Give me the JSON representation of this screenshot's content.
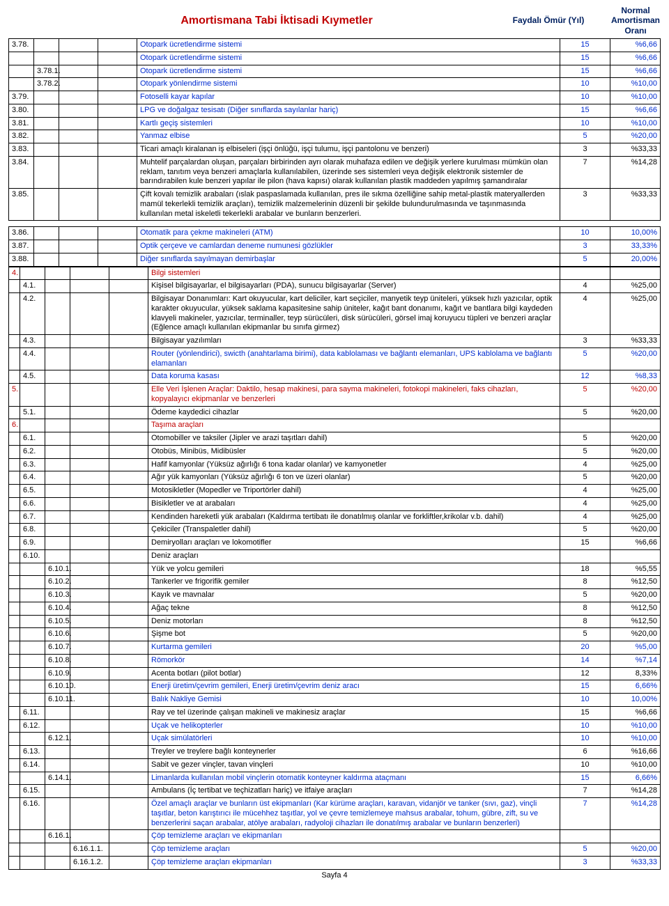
{
  "header": {
    "title": "Amortismana Tabi İktisadi Kıymetler",
    "col1": "Faydalı Ömür (Yıl)",
    "col2": "Normal Amortisman Oranı"
  },
  "footer": "Sayfa 4",
  "rows": [
    {
      "c1": "3.78.",
      "c2": "",
      "c3": "",
      "c4": "",
      "desc": "Otopark ücretlendirme sistemi",
      "col": "blue",
      "v1": "15",
      "v2": "%6,66"
    },
    {
      "c1": "",
      "c2": "",
      "c3": "",
      "c4": "",
      "desc": "Otopark ücretlendirme sistemi",
      "col": "blue",
      "v1": "15",
      "v2": "%6,66"
    },
    {
      "c1": "",
      "c2": "3.78.1.",
      "c3": "",
      "c4": "",
      "desc": "Otopark ücretlendirme sistemi",
      "col": "blue",
      "v1": "15",
      "v2": "%6,66"
    },
    {
      "c1": "",
      "c2": "3.78.2.",
      "c3": "",
      "c4": "",
      "desc": "Otopark yönlendirme sistemi",
      "col": "blue",
      "v1": "10",
      "v2": "%10,00"
    },
    {
      "c1": "3.79.",
      "c2": "",
      "c3": "",
      "c4": "",
      "desc": "Fotoselli kayar kapılar",
      "col": "blue",
      "v1": "10",
      "v2": "%10,00"
    },
    {
      "c1": "3.80.",
      "c2": "",
      "c3": "",
      "c4": "",
      "desc": "LPG ve doğalgaz tesisatı (Diğer sınıflarda sayılanlar hariç)",
      "col": "blue",
      "v1": "15",
      "v2": "%6,66"
    },
    {
      "c1": "3.81.",
      "c2": "",
      "c3": "",
      "c4": "",
      "desc": "Kartlı geçiş sistemleri",
      "col": "blue",
      "v1": "10",
      "v2": "%10,00"
    },
    {
      "c1": "3.82.",
      "c2": "",
      "c3": "",
      "c4": "",
      "desc": "Yanmaz elbise",
      "col": "blue",
      "v1": "5",
      "v2": "%20,00"
    },
    {
      "c1": "3.83.",
      "c2": "",
      "c3": "",
      "c4": "",
      "desc": "Ticari amaçlı kiralanan iş elbiseleri (işçi önlüğü, işçi tulumu, işçi pantolonu ve benzeri)",
      "col": "",
      "v1": "3",
      "v2": "%33,33"
    },
    {
      "c1": "3.84.",
      "c2": "",
      "c3": "",
      "c4": "",
      "desc": "Muhtelif parçalardan oluşan, parçaları birbirinden ayrı olarak muhafaza edilen ve değişik yerlere kurulması mümkün olan reklam, tanıtım veya benzeri amaçlarla kullanılabilen, üzerinde ses sistemleri veya değişik elektronik sistemler de barındırabilen kule benzeri yapılar ile pilon (hava kapısı) olarak kullanılan plastik maddeden yapılmış şamandıralar",
      "col": "",
      "v1": "7",
      "v2": "%14,28"
    },
    {
      "c1": "3.85.",
      "c2": "",
      "c3": "",
      "c4": "",
      "desc": "Çift kovalı temizlik arabaları (ıslak paspaslamada kullanılan, pres ile sıkma özelliğine sahip metal-plastik materyallerden mamül tekerlekli temizlik araçları),  temizlik malzemelerinin düzenli bir şekilde bulundurulmasında ve taşınmasında kullanılan metal iskeletli tekerlekli arabalar ve bunların benzerleri.",
      "col": "",
      "v1": "3",
      "v2": "%33,33"
    }
  ],
  "rows2": [
    {
      "c1": "3.86.",
      "c2": "",
      "c3": "",
      "c4": "",
      "desc": "Otomatik para çekme makineleri (ATM)",
      "col": "blue",
      "v1": "10",
      "v2": "10,00%"
    },
    {
      "c1": "3.87.",
      "c2": "",
      "c3": "",
      "c4": "",
      "desc": "Optik çerçeve ve camlardan deneme numunesi gözlükler",
      "col": "blue",
      "v1": "3",
      "v2": "33,33%"
    },
    {
      "c1": "3.88.",
      "c2": "",
      "c3": "",
      "c4": "",
      "desc": "Diğer sınıflarda sayılmayan demirbaşlar",
      "col": "blue",
      "v1": "5",
      "v2": "20,00%"
    }
  ],
  "rows3": [
    {
      "c0": "4.",
      "c1": "",
      "c2": "",
      "c3": "",
      "c4": "",
      "desc": "Bilgi sistemleri",
      "col": "red",
      "v1": "",
      "v2": ""
    },
    {
      "c0": "",
      "c1": "4.1.",
      "c2": "",
      "c3": "",
      "c4": "",
      "desc": "Kişisel bilgisayarlar, el bilgisayarları (PDA), sunucu bilgisayarlar (Server)",
      "col": "",
      "v1": "4",
      "v2": "%25,00"
    },
    {
      "c0": "",
      "c1": "4.2.",
      "c2": "",
      "c3": "",
      "c4": "",
      "desc": "Bilgisayar Donanımları: Kart okuyucular, kart deliciler, kart seçiciler, manyetik teyp üniteleri, yüksek hızlı yazıcılar, optik karakter okuyucular, yüksek saklama kapasitesine sahip üniteler, kağıt bant donanımı, kağıt ve bantlara bilgi kaydeden klavyeli makineler, yazıcılar, terminaller, teyp sürücüleri, disk sürücüleri, görsel imaj koruyucu tüpleri ve benzeri araçlar (Eğlence amaçlı kullanılan ekipmanlar bu sınıfa girmez)",
      "col": "",
      "v1": "4",
      "v2": "%25,00"
    },
    {
      "c0": "",
      "c1": "4.3.",
      "c2": "",
      "c3": "",
      "c4": "",
      "desc": "Bilgisayar yazılımları",
      "col": "",
      "v1": "3",
      "v2": "%33,33"
    },
    {
      "c0": "",
      "c1": "4.4.",
      "c2": "",
      "c3": "",
      "c4": "",
      "desc": "Router (yönlendirici), swicth (anahtarlama birimi), data kablolaması ve bağlantı elemanları, UPS kablolama ve bağlantı elamanları",
      "col": "blue",
      "v1": "5",
      "v2": "%20,00"
    },
    {
      "c0": "",
      "c1": "4.5.",
      "c2": "",
      "c3": "",
      "c4": "",
      "desc": "Data koruma kasası",
      "col": "blue",
      "v1": "12",
      "v2": "%8,33"
    },
    {
      "c0": "5.",
      "c1": "",
      "c2": "",
      "c3": "",
      "c4": "",
      "desc": "Elle Veri İşlenen Araçlar: Daktilo, hesap makinesi, para sayma makineleri, fotokopi makineleri, faks cihazları, kopyalayıcı ekipmanlar ve benzerleri",
      "col": "red",
      "v1": "5",
      "v2": "%20,00",
      "vcol": "red"
    },
    {
      "c0": "",
      "c1": "5.1.",
      "c2": "",
      "c3": "",
      "c4": "",
      "desc": "Ödeme kaydedici cihazlar",
      "col": "",
      "v1": "5",
      "v2": "%20,00"
    },
    {
      "c0": "6.",
      "c1": "",
      "c2": "",
      "c3": "",
      "c4": "",
      "desc": "Taşıma araçları",
      "col": "red",
      "v1": "",
      "v2": ""
    },
    {
      "c0": "",
      "c1": "6.1.",
      "c2": "",
      "c3": "",
      "c4": "",
      "desc": "Otomobiller ve taksiler (Jipler ve arazi taşıtları dahil)",
      "col": "",
      "v1": "5",
      "v2": "%20,00"
    },
    {
      "c0": "",
      "c1": "6.2.",
      "c2": "",
      "c3": "",
      "c4": "",
      "desc": "Otobüs, Minibüs, Midibüsler",
      "col": "",
      "v1": "5",
      "v2": "%20,00"
    },
    {
      "c0": "",
      "c1": "6.3.",
      "c2": "",
      "c3": "",
      "c4": "",
      "desc": "Hafif kamyonlar (Yüksüz ağırlığı 6 tona kadar olanlar) ve kamyonetler",
      "col": "",
      "v1": "4",
      "v2": "%25,00"
    },
    {
      "c0": "",
      "c1": "6.4.",
      "c2": "",
      "c3": "",
      "c4": "",
      "desc": "Ağır yük kamyonları (Yüksüz ağırlığı 6 ton ve üzeri olanlar)",
      "col": "",
      "v1": "5",
      "v2": "%20,00"
    },
    {
      "c0": "",
      "c1": "6.5.",
      "c2": "",
      "c3": "",
      "c4": "",
      "desc": "Motosikletler (Mopedler ve Triportörler dahil)",
      "col": "",
      "v1": "4",
      "v2": "%25,00"
    },
    {
      "c0": "",
      "c1": "6.6.",
      "c2": "",
      "c3": "",
      "c4": "",
      "desc": "Bisikletler ve at arabaları",
      "col": "",
      "v1": "4",
      "v2": "%25,00"
    },
    {
      "c0": "",
      "c1": "6.7.",
      "c2": "",
      "c3": "",
      "c4": "",
      "desc": "Kendinden hareketli yük arabaları  (Kaldırma tertibatı ile donatılmış olanlar ve forkliftler,krikolar v.b. dahil)",
      "col": "",
      "v1": "4",
      "v2": "%25,00"
    },
    {
      "c0": "",
      "c1": "6.8.",
      "c2": "",
      "c3": "",
      "c4": "",
      "desc": "Çekiciler (Transpaletler dahil)",
      "col": "",
      "v1": "5",
      "v2": "%20,00"
    },
    {
      "c0": "",
      "c1": "6.9.",
      "c2": "",
      "c3": "",
      "c4": "",
      "desc": "Demiryolları araçları ve lokomotifler",
      "col": "",
      "v1": "15",
      "v2": "%6,66"
    },
    {
      "c0": "",
      "c1": "6.10.",
      "c2": "",
      "c3": "",
      "c4": "",
      "desc": "Deniz  araçları",
      "col": "",
      "v1": "",
      "v2": ""
    },
    {
      "c0": "",
      "c1": "",
      "c2": "6.10.1.",
      "c3": "",
      "c4": "",
      "desc": "Yük ve yolcu gemileri",
      "col": "",
      "v1": "18",
      "v2": "%5,55"
    },
    {
      "c0": "",
      "c1": "",
      "c2": "6.10.2.",
      "c3": "",
      "c4": "",
      "desc": "Tankerler ve frigorifik gemiler",
      "col": "",
      "v1": "8",
      "v2": "%12,50"
    },
    {
      "c0": "",
      "c1": "",
      "c2": "6.10.3.",
      "c3": "",
      "c4": "",
      "desc": "Kayık ve mavnalar",
      "col": "",
      "v1": "5",
      "v2": "%20,00"
    },
    {
      "c0": "",
      "c1": "",
      "c2": "6.10.4.",
      "c3": "",
      "c4": "",
      "desc": "Ağaç tekne",
      "col": "",
      "v1": "8",
      "v2": "%12,50"
    },
    {
      "c0": "",
      "c1": "",
      "c2": "6.10.5.",
      "c3": "",
      "c4": "",
      "desc": "Deniz motorları",
      "col": "",
      "v1": "8",
      "v2": "%12,50"
    },
    {
      "c0": "",
      "c1": "",
      "c2": "6.10.6.",
      "c3": "",
      "c4": "",
      "desc": "Şişme bot",
      "col": "",
      "v1": "5",
      "v2": "%20,00"
    },
    {
      "c0": "",
      "c1": "",
      "c2": "6.10.7.",
      "c3": "",
      "c4": "",
      "desc": "Kurtarma gemileri",
      "col": "blue",
      "v1": "20",
      "v2": "%5,00"
    },
    {
      "c0": "",
      "c1": "",
      "c2": "6.10.8.",
      "c3": "",
      "c4": "",
      "desc": "Römorkör",
      "col": "blue",
      "v1": "14",
      "v2": "%7,14"
    },
    {
      "c0": "",
      "c1": "",
      "c2": "6.10.9.",
      "c3": "",
      "c4": "",
      "desc": "Acenta botları (pilot botlar)",
      "col": "",
      "v1": "12",
      "v2": "8,33%"
    },
    {
      "c0": "",
      "c1": "",
      "c2": "6.10.10.",
      "c3": "",
      "c4": "",
      "desc": "Enerji üretim/çevrim gemileri, Enerji üretim/çevrim deniz aracı",
      "col": "blue",
      "v1": "15",
      "v2": "6,66%"
    },
    {
      "c0": "",
      "c1": "",
      "c2": "6.10.11.",
      "c3": "",
      "c4": "",
      "desc": "Balık Nakliye Gemisi",
      "col": "blue",
      "v1": "10",
      "v2": "10,00%"
    },
    {
      "c0": "",
      "c1": "6.11.",
      "c2": "",
      "c3": "",
      "c4": "",
      "desc": "Ray ve tel üzerinde çalışan makineli ve makinesiz araçlar",
      "col": "",
      "v1": "15",
      "v2": "%6,66"
    },
    {
      "c0": "",
      "c1": "6.12.",
      "c2": "",
      "c3": "",
      "c4": "",
      "desc": "Uçak ve helikopterler",
      "col": "blue",
      "v1": "10",
      "v2": "%10,00"
    },
    {
      "c0": "",
      "c1": "",
      "c2": "6.12.1.",
      "c3": "",
      "c4": "",
      "desc": "Uçak simülatörleri",
      "col": "blue",
      "v1": "10",
      "v2": "%10,00"
    },
    {
      "c0": "",
      "c1": "6.13.",
      "c2": "",
      "c3": "",
      "c4": "",
      "desc": "Treyler ve treylere bağlı konteynerler",
      "col": "",
      "v1": "6",
      "v2": "%16,66"
    },
    {
      "c0": "",
      "c1": "6.14.",
      "c2": "",
      "c3": "",
      "c4": "",
      "desc": "Sabit ve gezer vinçler, tavan vinçleri",
      "col": "",
      "v1": "10",
      "v2": "%10,00"
    },
    {
      "c0": "",
      "c1": "",
      "c2": "6.14.1.",
      "c3": "",
      "c4": "",
      "desc": "Limanlarda kullanılan mobil vinçlerin otomatik konteyner kaldırma ataçmanı",
      "col": "blue",
      "v1": "15",
      "v2": "6,66%"
    },
    {
      "c0": "",
      "c1": "6.15.",
      "c2": "",
      "c3": "",
      "c4": "",
      "desc": "Ambulans (İç tertibat ve teçhizatları hariç) ve itfaiye araçları",
      "col": "",
      "v1": "7",
      "v2": "%14,28"
    },
    {
      "c0": "",
      "c1": "6.16.",
      "c2": "",
      "c3": "",
      "c4": "",
      "desc": "Özel amaçlı araçlar ve bunların üst ekipmanları (Kar kürüme araçları, karavan, vidanjör ve tanker (sıvı, gaz), vinçli taşıtlar, beton karıştırıcı ile mücehhez taşıtlar, yol ve çevre temizlemeye mahsus arabalar, tohum, gübre, zift, su ve benzerlerini saçan arabalar, atölye arabaları, radyoloji cihazları ile donatılmış arabalar ve bunların benzerleri)",
      "col": "blue",
      "v1": "7",
      "v2": "%14,28"
    },
    {
      "c0": "",
      "c1": "",
      "c2": "6.16.1.",
      "c3": "",
      "c4": "",
      "desc": "Çöp temizleme araçları ve ekipmanları",
      "col": "blue",
      "v1": "",
      "v2": ""
    },
    {
      "c0": "",
      "c1": "",
      "c2": "",
      "c3": "6.16.1.1.",
      "c4": "",
      "desc": "Çöp temizleme araçları",
      "col": "blue",
      "v1": "5",
      "v2": "%20,00"
    },
    {
      "c0": "",
      "c1": "",
      "c2": "",
      "c3": "6.16.1.2.",
      "c4": "",
      "desc": "Çöp temizleme araçları ekipmanları",
      "col": "blue",
      "v1": "3",
      "v2": "%33,33"
    }
  ]
}
